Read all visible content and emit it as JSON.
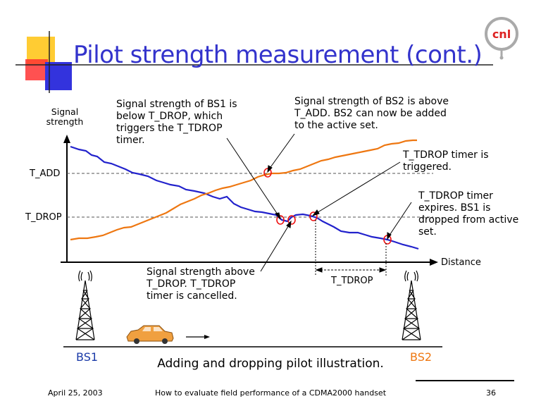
{
  "slide": {
    "title": "Pilot strength measurement (cont.)",
    "logo_text": "cnl",
    "caption": "Adding and dropping pilot illustration.",
    "footer_date": "April 25, 2003",
    "footer_title": "How to evaluate field performance of a CDMA2000 handset",
    "page_number": "36"
  },
  "axis": {
    "y_label": "Signal\nstrength",
    "x_label": "Distance",
    "t_add": "T_ADD",
    "t_drop": "T_DROP",
    "t_tdrop_interval": "T_TDROP"
  },
  "annotations": {
    "bs1_below_drop": "Signal strength of BS1 is\nbelow T_DROP, which\ntriggers the T_TDROP\ntimer.",
    "bs2_above_add": "Signal strength of BS2 is above\nT_ADD.  BS2 can now be added\nto the active set.",
    "timer_triggered": "T_TDROP timer is\ntriggered.",
    "timer_expires": "T_TDROP timer\nexpires.  BS1 is\ndropped from active\nset.",
    "timer_cancelled": "Signal strength above\nT_DROP.  T_TDROP\ntimer is cancelled."
  },
  "stations": {
    "bs1": "BS1",
    "bs2": "BS2"
  },
  "colors": {
    "title": "#3333cc",
    "bs1_curve": "#2222cc",
    "bs2_curve": "#ee7711",
    "bs1_label": "#1a3aa8",
    "bs2_label": "#ee7711",
    "marker": "#ee1111"
  }
}
